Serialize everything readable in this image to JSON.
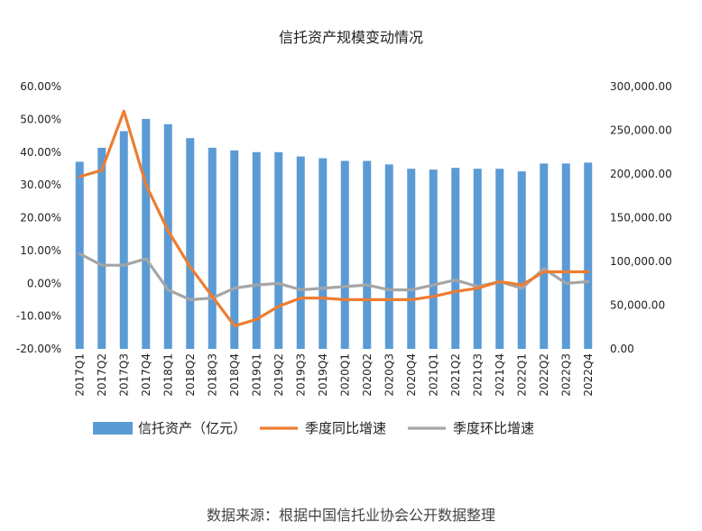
{
  "chart_data": {
    "type": "bar+line",
    "title": "信托资产规模变动情况",
    "source": "数据来源：根据中国信托业协会公开数据整理",
    "categories": [
      "2017Q1",
      "2017Q2",
      "2017Q3",
      "2017Q4",
      "2018Q1",
      "2018Q2",
      "2018Q3",
      "2018Q4",
      "2019Q1",
      "2019Q2",
      "2019Q3",
      "2019Q4",
      "2020Q1",
      "2020Q2",
      "2020Q3",
      "2020Q4",
      "2021Q1",
      "2021Q2",
      "2021Q3",
      "2021Q4",
      "2022Q1",
      "2022Q2",
      "2022Q3",
      "2022Q4"
    ],
    "left_axis": {
      "ylim": [
        -20,
        60
      ],
      "ticks": [
        60,
        50,
        40,
        30,
        20,
        10,
        0,
        -10,
        -20
      ],
      "tick_labels": [
        "60.00%",
        "50.00%",
        "40.00%",
        "30.00%",
        "20.00%",
        "10.00%",
        "0.00%",
        "-10.00%",
        "-20.00%"
      ]
    },
    "right_axis": {
      "ylim": [
        0,
        300000
      ],
      "ticks": [
        300000,
        250000,
        200000,
        150000,
        100000,
        50000,
        0
      ],
      "tick_labels": [
        "300,000.00",
        "250,000.00",
        "200,000.00",
        "150,000.00",
        "100,000.00",
        "50,000.00",
        "0.00"
      ]
    },
    "series": [
      {
        "name": "信托资产（亿元）",
        "kind": "bar",
        "axis": "right",
        "color": "#5b9bd5",
        "values": [
          214000,
          230000,
          249000,
          263000,
          257000,
          241000,
          230000,
          227000,
          225000,
          225000,
          220000,
          218000,
          215000,
          215000,
          211000,
          206000,
          205000,
          207000,
          206000,
          206000,
          203000,
          212000,
          212000,
          213000
        ]
      },
      {
        "name": "季度同比增速",
        "kind": "line",
        "axis": "left",
        "color": "#ed7d31",
        "values": [
          32.5,
          34.5,
          52.5,
          30.0,
          16.0,
          5.0,
          -4.0,
          -13.0,
          -11.0,
          -7.0,
          -4.5,
          -4.5,
          -5.0,
          -5.0,
          -5.0,
          -5.0,
          -4.0,
          -2.5,
          -1.5,
          0.5,
          -0.5,
          3.5,
          3.5,
          3.5
        ]
      },
      {
        "name": "季度环比增速",
        "kind": "line",
        "axis": "left",
        "color": "#a5a5a5",
        "values": [
          9.0,
          5.5,
          5.5,
          7.5,
          -2.0,
          -5.0,
          -4.5,
          -1.5,
          -0.5,
          0.0,
          -2.0,
          -1.5,
          -1.0,
          -0.5,
          -2.0,
          -2.0,
          -0.5,
          1.0,
          -1.0,
          0.5,
          -1.5,
          4.5,
          0.0,
          0.5
        ]
      }
    ],
    "legend": [
      "信托资产（亿元）",
      "季度同比增速",
      "季度环比增速"
    ],
    "legend_position": "bottom"
  }
}
